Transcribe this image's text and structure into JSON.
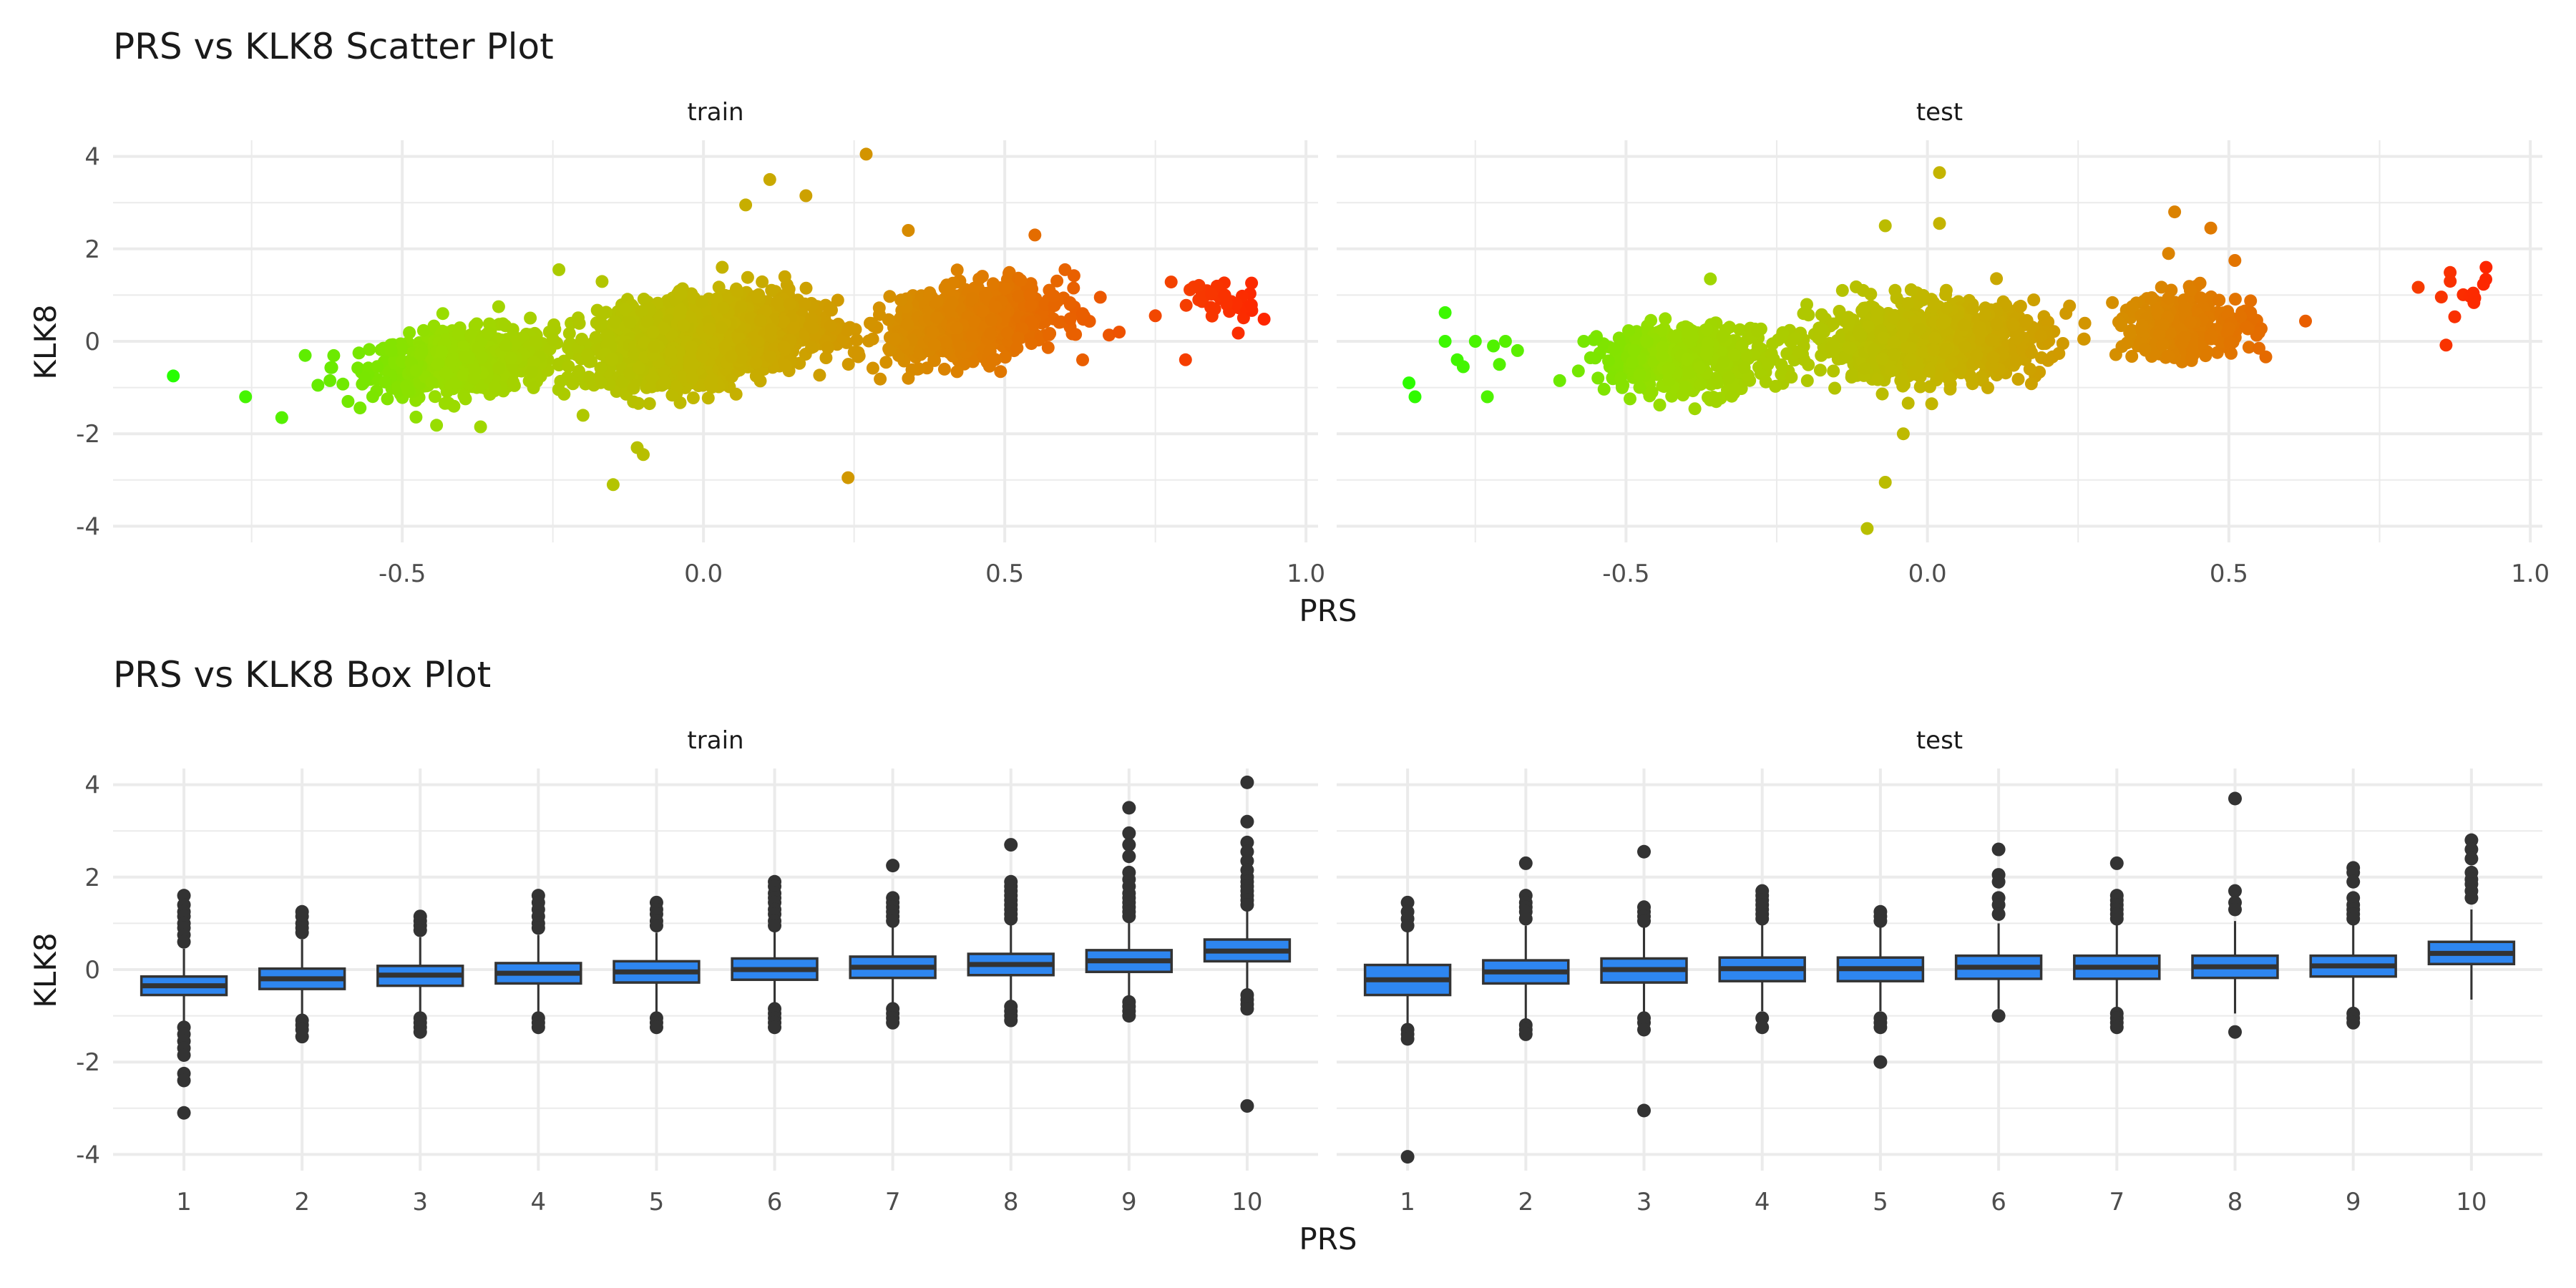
{
  "figure": {
    "scatter_title": "PRS vs KLK8 Scatter Plot",
    "box_title": "PRS vs KLK8 Box Plot"
  },
  "colors": {
    "grid": "#ebebeb",
    "text": "#1a1a1a",
    "tick_text": "#4d4d4d",
    "box_fill": "#2e86f0",
    "box_stroke": "#333333",
    "outlier": "#333333",
    "gradient": [
      "#22ff00",
      "#99dd00",
      "#c4b400",
      "#e07800",
      "#ff2200"
    ]
  },
  "chart_data": [
    {
      "type": "scatter",
      "title": "PRS vs KLK8 Scatter Plot",
      "xlabel": "PRS",
      "ylabel": "KLK8",
      "color_by": "x",
      "grid": true,
      "panels": [
        {
          "facet": "train",
          "xlim": [
            -0.98,
            1.02
          ],
          "ylim": [
            -4.35,
            4.35
          ],
          "xticks": [
            -0.5,
            0.0,
            0.5,
            1.0
          ],
          "xtick_labels": [
            "-0.5",
            "0.0",
            "0.5",
            "1.0"
          ],
          "yticks": [
            -4,
            -2,
            0,
            2,
            4
          ],
          "ytick_labels": [
            "-4",
            "-2",
            "0",
            "2",
            "4"
          ],
          "clusters": [
            {
              "cx": -0.4,
              "cy": -0.45,
              "sx": 0.075,
              "sy": 0.33,
              "n": 700,
              "slope": 0.9
            },
            {
              "cx": 0.0,
              "cy": 0.05,
              "sx": 0.085,
              "sy": 0.42,
              "n": 1900,
              "slope": 1.5
            },
            {
              "cx": 0.45,
              "cy": 0.4,
              "sx": 0.07,
              "sy": 0.36,
              "n": 850,
              "slope": 1.6
            },
            {
              "cx": 0.85,
              "cy": 0.85,
              "sx": 0.035,
              "sy": 0.32,
              "n": 38,
              "slope": 0.0
            }
          ],
          "points": [
            {
              "x": -0.88,
              "y": -0.75
            },
            {
              "x": -0.76,
              "y": -1.2
            },
            {
              "x": -0.7,
              "y": -1.65
            },
            {
              "x": -0.64,
              "y": -0.95
            },
            {
              "x": -0.62,
              "y": -0.85
            },
            {
              "x": -0.59,
              "y": -1.3
            },
            {
              "x": -0.24,
              "y": 1.55
            },
            {
              "x": -0.37,
              "y": -1.85
            },
            {
              "x": -0.34,
              "y": 0.75
            },
            {
              "x": -0.15,
              "y": -3.1
            },
            {
              "x": -0.11,
              "y": -2.3
            },
            {
              "x": -0.1,
              "y": -2.45
            },
            {
              "x": 0.11,
              "y": 3.5
            },
            {
              "x": 0.27,
              "y": 4.05
            },
            {
              "x": 0.24,
              "y": -2.95
            },
            {
              "x": 0.17,
              "y": 3.15
            },
            {
              "x": 0.07,
              "y": 2.95
            },
            {
              "x": 0.34,
              "y": 2.4
            },
            {
              "x": 0.69,
              "y": 0.2
            },
            {
              "x": 0.8,
              "y": -0.4
            },
            {
              "x": 0.6,
              "y": 1.55
            },
            {
              "x": 0.34,
              "y": -0.8
            },
            {
              "x": 0.55,
              "y": 2.3
            },
            {
              "x": -0.2,
              "y": -1.6
            }
          ]
        },
        {
          "facet": "test",
          "xlim": [
            -0.98,
            1.02
          ],
          "ylim": [
            -4.35,
            4.35
          ],
          "xticks": [
            -0.5,
            0.0,
            0.5,
            1.0
          ],
          "xtick_labels": [
            "-0.5",
            "0.0",
            "0.5",
            "1.0"
          ],
          "yticks": [
            -4,
            -2,
            0,
            2,
            4
          ],
          "ytick_labels": [
            "-4",
            "-2",
            "0",
            "2",
            "4"
          ],
          "clusters": [
            {
              "cx": -0.4,
              "cy": -0.4,
              "sx": 0.07,
              "sy": 0.36,
              "n": 420,
              "slope": 0.0
            },
            {
              "cx": 0.0,
              "cy": 0.0,
              "sx": 0.095,
              "sy": 0.4,
              "n": 950,
              "slope": 0.3
            },
            {
              "cx": 0.43,
              "cy": 0.35,
              "sx": 0.055,
              "sy": 0.35,
              "n": 300,
              "slope": 0.3
            },
            {
              "cx": 0.89,
              "cy": 0.75,
              "sx": 0.025,
              "sy": 0.35,
              "n": 14,
              "slope": 0.0
            }
          ],
          "points": [
            {
              "x": -0.86,
              "y": -0.9
            },
            {
              "x": -0.85,
              "y": -1.2
            },
            {
              "x": -0.8,
              "y": 0.62
            },
            {
              "x": -0.8,
              "y": 0.0
            },
            {
              "x": -0.78,
              "y": -0.4
            },
            {
              "x": -0.77,
              "y": -0.55
            },
            {
              "x": -0.75,
              "y": 0.0
            },
            {
              "x": -0.73,
              "y": -1.2
            },
            {
              "x": -0.72,
              "y": -0.1
            },
            {
              "x": -0.71,
              "y": -0.5
            },
            {
              "x": -0.7,
              "y": 0.0
            },
            {
              "x": -0.68,
              "y": -0.2
            },
            {
              "x": -0.61,
              "y": -0.85
            },
            {
              "x": -0.57,
              "y": 0.0
            },
            {
              "x": -0.36,
              "y": 1.35
            },
            {
              "x": 0.02,
              "y": 3.65
            },
            {
              "x": -0.07,
              "y": 2.5
            },
            {
              "x": 0.02,
              "y": 2.55
            },
            {
              "x": -0.07,
              "y": -3.05
            },
            {
              "x": -0.1,
              "y": -4.05
            },
            {
              "x": -0.04,
              "y": -2.0
            },
            {
              "x": 0.41,
              "y": 2.8
            },
            {
              "x": 0.47,
              "y": 2.45
            },
            {
              "x": 0.51,
              "y": 1.75
            },
            {
              "x": 0.4,
              "y": 1.9
            },
            {
              "x": 0.55,
              "y": -0.15
            },
            {
              "x": 0.26,
              "y": 0.05
            }
          ]
        }
      ]
    },
    {
      "type": "box",
      "title": "PRS vs KLK8 Box Plot",
      "xlabel": "PRS",
      "ylabel": "KLK8",
      "grid": true,
      "panels": [
        {
          "facet": "train",
          "categories": [
            "1",
            "2",
            "3",
            "4",
            "5",
            "6",
            "7",
            "8",
            "9",
            "10"
          ],
          "ylim": [
            -4.35,
            4.35
          ],
          "yticks": [
            -4,
            -2,
            0,
            2,
            4
          ],
          "ytick_labels": [
            "-4",
            "-2",
            "0",
            "2",
            "4"
          ],
          "boxes": [
            {
              "q1": -0.55,
              "median": -0.35,
              "q3": -0.15,
              "whisker_low": -1.15,
              "whisker_high": 0.45,
              "outliers": [
                1.6,
                1.4,
                1.25,
                1.15,
                1.0,
                0.9,
                0.75,
                0.6,
                -1.25,
                -1.4,
                -1.55,
                -1.7,
                -1.85,
                -2.25,
                -2.4,
                -3.1
              ]
            },
            {
              "q1": -0.42,
              "median": -0.2,
              "q3": 0.02,
              "whisker_low": -1.0,
              "whisker_high": 0.65,
              "outliers": [
                1.25,
                1.15,
                1.0,
                0.9,
                0.8,
                -1.1,
                -1.2,
                -1.3,
                -1.45
              ]
            },
            {
              "q1": -0.35,
              "median": -0.12,
              "q3": 0.08,
              "whisker_low": -0.95,
              "whisker_high": 0.7,
              "outliers": [
                1.15,
                1.05,
                0.95,
                0.85,
                -1.05,
                -1.15,
                -1.25,
                -1.35
              ]
            },
            {
              "q1": -0.3,
              "median": -0.08,
              "q3": 0.14,
              "whisker_low": -0.95,
              "whisker_high": 0.75,
              "outliers": [
                1.6,
                1.45,
                1.3,
                1.15,
                1.0,
                0.9,
                -1.05,
                -1.15,
                -1.25
              ]
            },
            {
              "q1": -0.28,
              "median": -0.05,
              "q3": 0.18,
              "whisker_low": -0.95,
              "whisker_high": 0.8,
              "outliers": [
                1.45,
                1.3,
                1.2,
                1.05,
                0.95,
                -1.05,
                -1.15,
                -1.25
              ]
            },
            {
              "q1": -0.22,
              "median": 0.0,
              "q3": 0.24,
              "whisker_low": -0.95,
              "whisker_high": 0.85,
              "outliers": [
                1.9,
                1.8,
                1.65,
                1.55,
                1.45,
                1.3,
                1.2,
                1.05,
                0.95,
                -0.85,
                -0.95,
                -1.05,
                -1.15,
                -1.25
              ]
            },
            {
              "q1": -0.18,
              "median": 0.05,
              "q3": 0.28,
              "whisker_low": -0.8,
              "whisker_high": 0.95,
              "outliers": [
                2.25,
                1.55,
                1.45,
                1.35,
                1.25,
                1.15,
                1.05,
                -0.85,
                -0.95,
                -1.05,
                -1.15
              ]
            },
            {
              "q1": -0.12,
              "median": 0.11,
              "q3": 0.34,
              "whisker_low": -0.75,
              "whisker_high": 1.0,
              "outliers": [
                2.7,
                1.9,
                1.8,
                1.7,
                1.6,
                1.5,
                1.4,
                1.3,
                1.2,
                1.1,
                -0.8,
                -0.9,
                -1.0,
                -1.1
              ]
            },
            {
              "q1": -0.05,
              "median": 0.19,
              "q3": 0.42,
              "whisker_low": -0.65,
              "whisker_high": 1.05,
              "outliers": [
                3.5,
                2.95,
                2.7,
                2.45,
                2.1,
                1.95,
                1.8,
                1.65,
                1.55,
                1.45,
                1.35,
                1.25,
                1.15,
                -0.7,
                -0.8,
                -0.9,
                -1.0
              ]
            },
            {
              "q1": 0.18,
              "median": 0.4,
              "q3": 0.65,
              "whisker_low": -0.5,
              "whisker_high": 1.3,
              "outliers": [
                4.05,
                3.2,
                2.75,
                2.55,
                2.35,
                2.15,
                2.0,
                1.9,
                1.8,
                1.7,
                1.6,
                1.5,
                1.4,
                -0.55,
                -0.65,
                -0.75,
                -0.85,
                -2.95
              ]
            }
          ]
        },
        {
          "facet": "test",
          "categories": [
            "1",
            "2",
            "3",
            "4",
            "5",
            "6",
            "7",
            "8",
            "9",
            "10"
          ],
          "ylim": [
            -4.35,
            4.35
          ],
          "yticks": [
            -4,
            -2,
            0,
            2,
            4
          ],
          "ytick_labels": [
            "-4",
            "-2",
            "0",
            "2",
            "4"
          ],
          "boxes": [
            {
              "q1": -0.55,
              "median": -0.22,
              "q3": 0.1,
              "whisker_low": -1.2,
              "whisker_high": 0.9,
              "outliers": [
                1.45,
                1.25,
                1.1,
                0.95,
                -1.3,
                -1.4,
                -1.5,
                -4.05
              ]
            },
            {
              "q1": -0.3,
              "median": -0.05,
              "q3": 0.2,
              "whisker_low": -1.1,
              "whisker_high": 0.95,
              "outliers": [
                2.3,
                1.6,
                1.45,
                1.35,
                1.25,
                1.1,
                -1.2,
                -1.3,
                -1.4
              ]
            },
            {
              "q1": -0.28,
              "median": 0.0,
              "q3": 0.24,
              "whisker_low": -0.95,
              "whisker_high": 0.95,
              "outliers": [
                2.55,
                1.35,
                1.25,
                1.15,
                1.05,
                -1.05,
                -1.15,
                -1.3,
                -3.05
              ]
            },
            {
              "q1": -0.25,
              "median": 0.02,
              "q3": 0.26,
              "whisker_low": -0.9,
              "whisker_high": 1.0,
              "outliers": [
                1.7,
                1.6,
                1.5,
                1.4,
                1.3,
                1.2,
                1.1,
                -1.05,
                -1.25
              ]
            },
            {
              "q1": -0.25,
              "median": 0.02,
              "q3": 0.26,
              "whisker_low": -0.9,
              "whisker_high": 1.0,
              "outliers": [
                1.25,
                1.15,
                1.05,
                -1.05,
                -1.15,
                -1.25,
                -2.0
              ]
            },
            {
              "q1": -0.2,
              "median": 0.05,
              "q3": 0.3,
              "whisker_low": -0.85,
              "whisker_high": 1.0,
              "outliers": [
                2.6,
                2.05,
                1.9,
                1.55,
                1.4,
                1.2,
                -1.0
              ]
            },
            {
              "q1": -0.2,
              "median": 0.05,
              "q3": 0.3,
              "whisker_low": -0.85,
              "whisker_high": 1.0,
              "outliers": [
                2.3,
                1.6,
                1.5,
                1.4,
                1.3,
                1.2,
                1.1,
                -0.95,
                -1.05,
                -1.15,
                -1.25
              ]
            },
            {
              "q1": -0.18,
              "median": 0.06,
              "q3": 0.3,
              "whisker_low": -0.95,
              "whisker_high": 1.05,
              "outliers": [
                3.7,
                1.7,
                1.45,
                1.3,
                -1.35
              ]
            },
            {
              "q1": -0.15,
              "median": 0.08,
              "q3": 0.3,
              "whisker_low": -0.85,
              "whisker_high": 1.0,
              "outliers": [
                2.2,
                2.1,
                1.9,
                1.55,
                1.4,
                1.3,
                1.2,
                1.1,
                -0.95,
                -1.05,
                -1.15
              ]
            },
            {
              "q1": 0.12,
              "median": 0.35,
              "q3": 0.6,
              "whisker_low": -0.65,
              "whisker_high": 1.3,
              "outliers": [
                2.8,
                2.6,
                2.4,
                2.1,
                1.95,
                1.85,
                1.7,
                1.55
              ]
            }
          ]
        }
      ]
    }
  ]
}
